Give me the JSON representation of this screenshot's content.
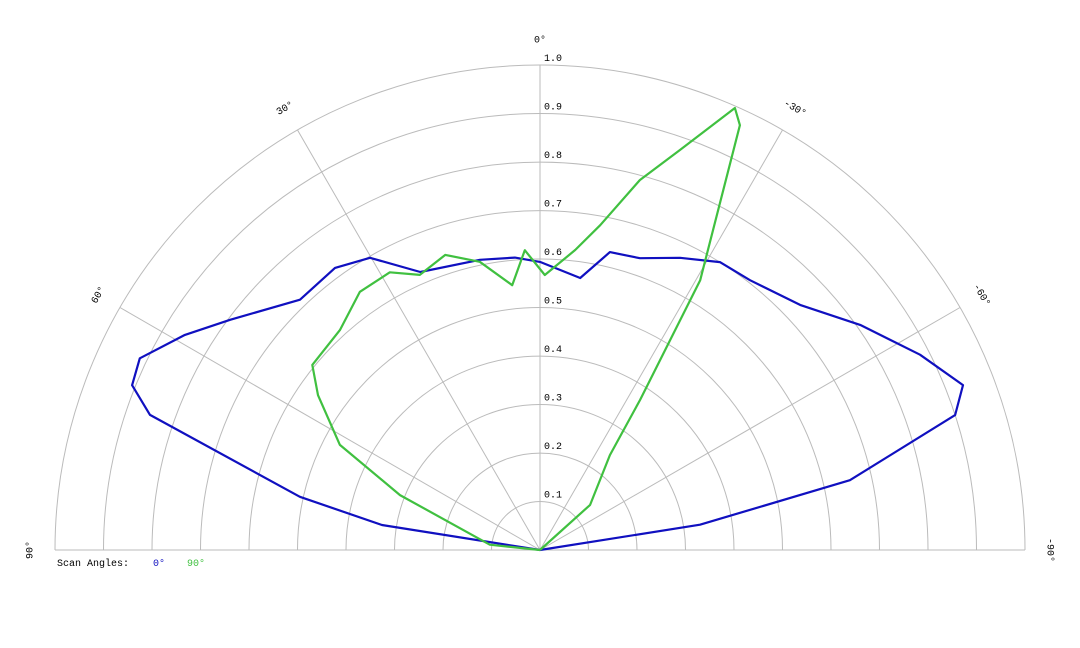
{
  "chart_data": {
    "type": "polar",
    "rlim": [
      0,
      1
    ],
    "rticks": [
      0.1,
      0.2,
      0.3,
      0.4,
      0.5,
      0.6,
      0.7,
      0.8,
      0.9,
      {
        "value": 1,
        "label": "1.0"
      }
    ],
    "thetalim": [
      -90,
      90
    ],
    "thetaticks": [
      {
        "value": 90,
        "label": "90°"
      },
      {
        "value": 60,
        "label": "60°"
      },
      {
        "value": 30,
        "label": "30°"
      },
      {
        "value": 0,
        "label": "0°"
      },
      {
        "value": -30,
        "label": "-30°"
      },
      {
        "value": -60,
        "label": "-60°"
      },
      {
        "value": -90,
        "label": "-90°"
      }
    ],
    "grid": true,
    "legend_title": "Scan Angles:",
    "series": [
      {
        "name": "0°",
        "color": "#1010c0",
        "theta": [
          90,
          81,
          77.5,
          70.9,
          68,
          64.4,
          58.8,
          53.4,
          43.8,
          36,
          30.2,
          23.3,
          11.7,
          4.9,
          0,
          -8.4,
          -13.2,
          -18.9,
          -25.6,
          -32,
          -37.9,
          -46.7,
          -54.9,
          -62.8,
          -68.7,
          -72,
          -77.3,
          -81,
          -90
        ],
        "values": [
          0,
          0.33,
          0.507,
          0.851,
          0.907,
          0.915,
          0.856,
          0.796,
          0.715,
          0.719,
          0.697,
          0.624,
          0.611,
          0.605,
          0.594,
          0.567,
          0.631,
          0.636,
          0.668,
          0.7,
          0.705,
          0.737,
          0.807,
          0.881,
          0.936,
          0.9,
          0.655,
          0.334,
          0
        ]
      },
      {
        "name": "90°",
        "color": "#40c040",
        "theta": [
          90,
          84,
          68.6,
          62.3,
          55.1,
          50.9,
          42.3,
          34.9,
          28.4,
          23.6,
          17.8,
          11.8,
          6,
          2.9,
          -1,
          -6.7,
          -10.5,
          -15.1,
          -19.3,
          -23.8,
          -25.2,
          -30.7,
          -33.7,
          -36.4,
          -48,
          -60
        ],
        "values": [
          0,
          0.104,
          0.31,
          0.466,
          0.558,
          0.605,
          0.613,
          0.649,
          0.651,
          0.619,
          0.639,
          0.607,
          0.549,
          0.619,
          0.567,
          0.623,
          0.681,
          0.79,
          0.874,
          0.996,
          0.968,
          0.647,
          0.372,
          0.243,
          0.139,
          0
        ]
      }
    ]
  }
}
